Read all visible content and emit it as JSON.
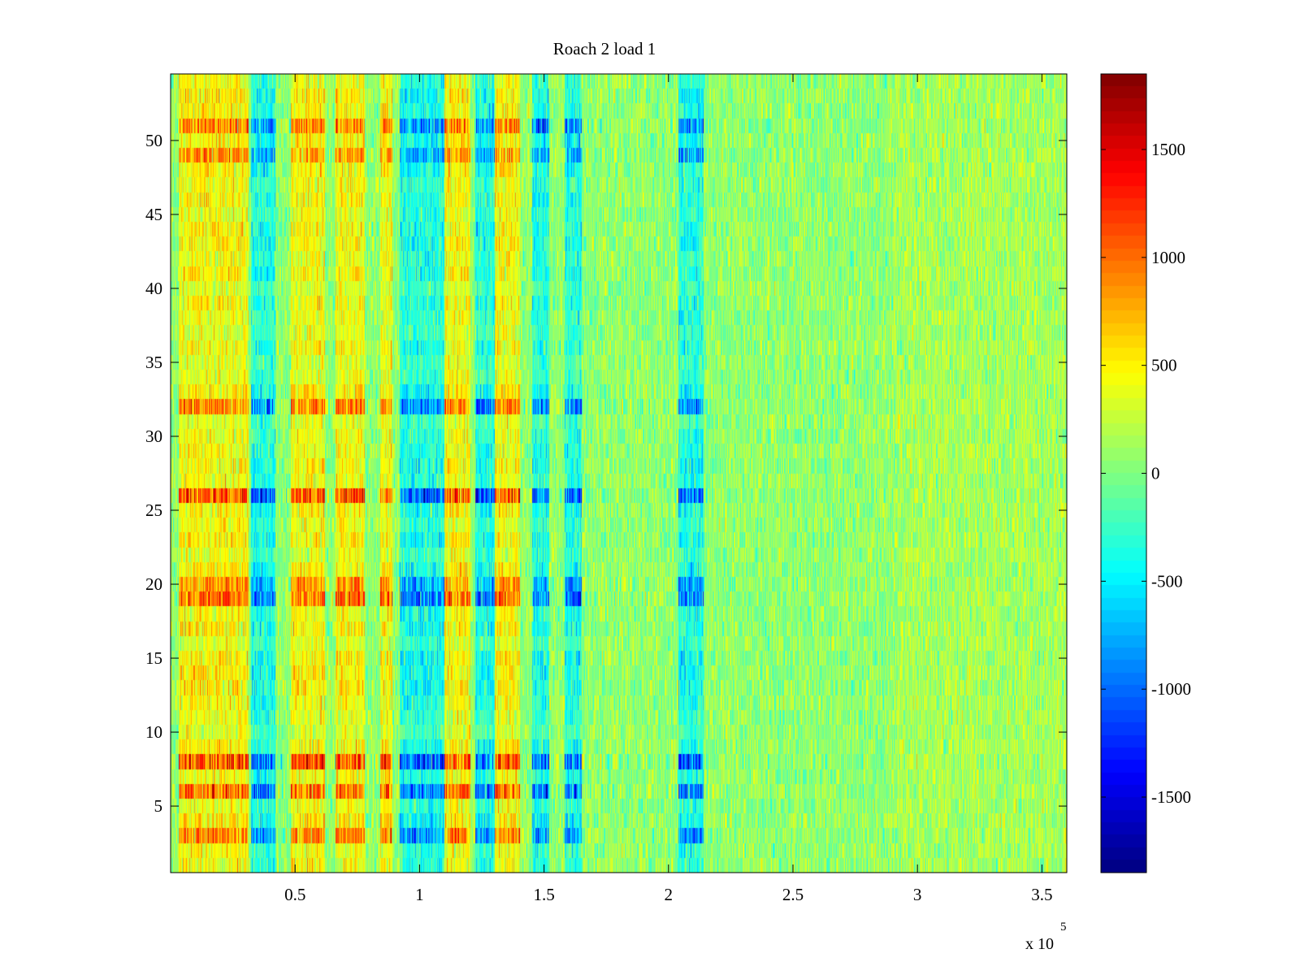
{
  "chart_data": {
    "type": "heatmap",
    "title": "Roach 2 load 1",
    "xlabel": "",
    "ylabel": "",
    "x_exponent_label": "x 10",
    "x_exponent_power": "5",
    "xlim": [
      0,
      3.6
    ],
    "ylim": [
      0.5,
      54.5
    ],
    "x_ticks": [
      0.5,
      1,
      1.5,
      2,
      2.5,
      3,
      3.5
    ],
    "x_tick_labels": [
      "0.5",
      "1",
      "1.5",
      "2",
      "2.5",
      "3",
      "3.5"
    ],
    "y_ticks": [
      5,
      10,
      15,
      20,
      25,
      30,
      35,
      40,
      45,
      50
    ],
    "y_tick_labels": [
      "5",
      "10",
      "15",
      "20",
      "25",
      "30",
      "35",
      "40",
      "45",
      "50"
    ],
    "n_rows": 54,
    "row_index_range": [
      1,
      54
    ],
    "colormap": "jet",
    "color_limits": [
      -1850,
      1850
    ],
    "colorbar_ticks": [
      1500,
      1000,
      500,
      0,
      -500,
      -1000,
      -1500
    ],
    "colorbar_tick_labels": [
      "1500",
      "1000",
      "500",
      "0",
      "-500",
      "-1000",
      "-1500"
    ],
    "strong_rows": [
      3,
      6,
      8,
      19,
      20,
      26,
      32,
      49,
      51
    ],
    "positive_bands_x": [
      [
        0.03,
        0.31
      ],
      [
        0.48,
        0.62
      ],
      [
        0.66,
        0.78
      ],
      [
        0.84,
        0.89
      ],
      [
        1.1,
        1.2
      ],
      [
        1.3,
        1.4
      ]
    ],
    "negative_bands_x": [
      [
        0.32,
        0.42
      ],
      [
        0.92,
        1.1
      ],
      [
        1.22,
        1.3
      ],
      [
        1.45,
        1.52
      ],
      [
        1.58,
        1.65
      ],
      [
        2.04,
        2.14
      ]
    ],
    "structured_extent_x": [
      0,
      2.16
    ],
    "notes": "Values vary across x (scaled by 1e5) and row index 1-54; strong alternating positive/negative bands before x≈2.16e5, near-zero noise afterwards."
  }
}
